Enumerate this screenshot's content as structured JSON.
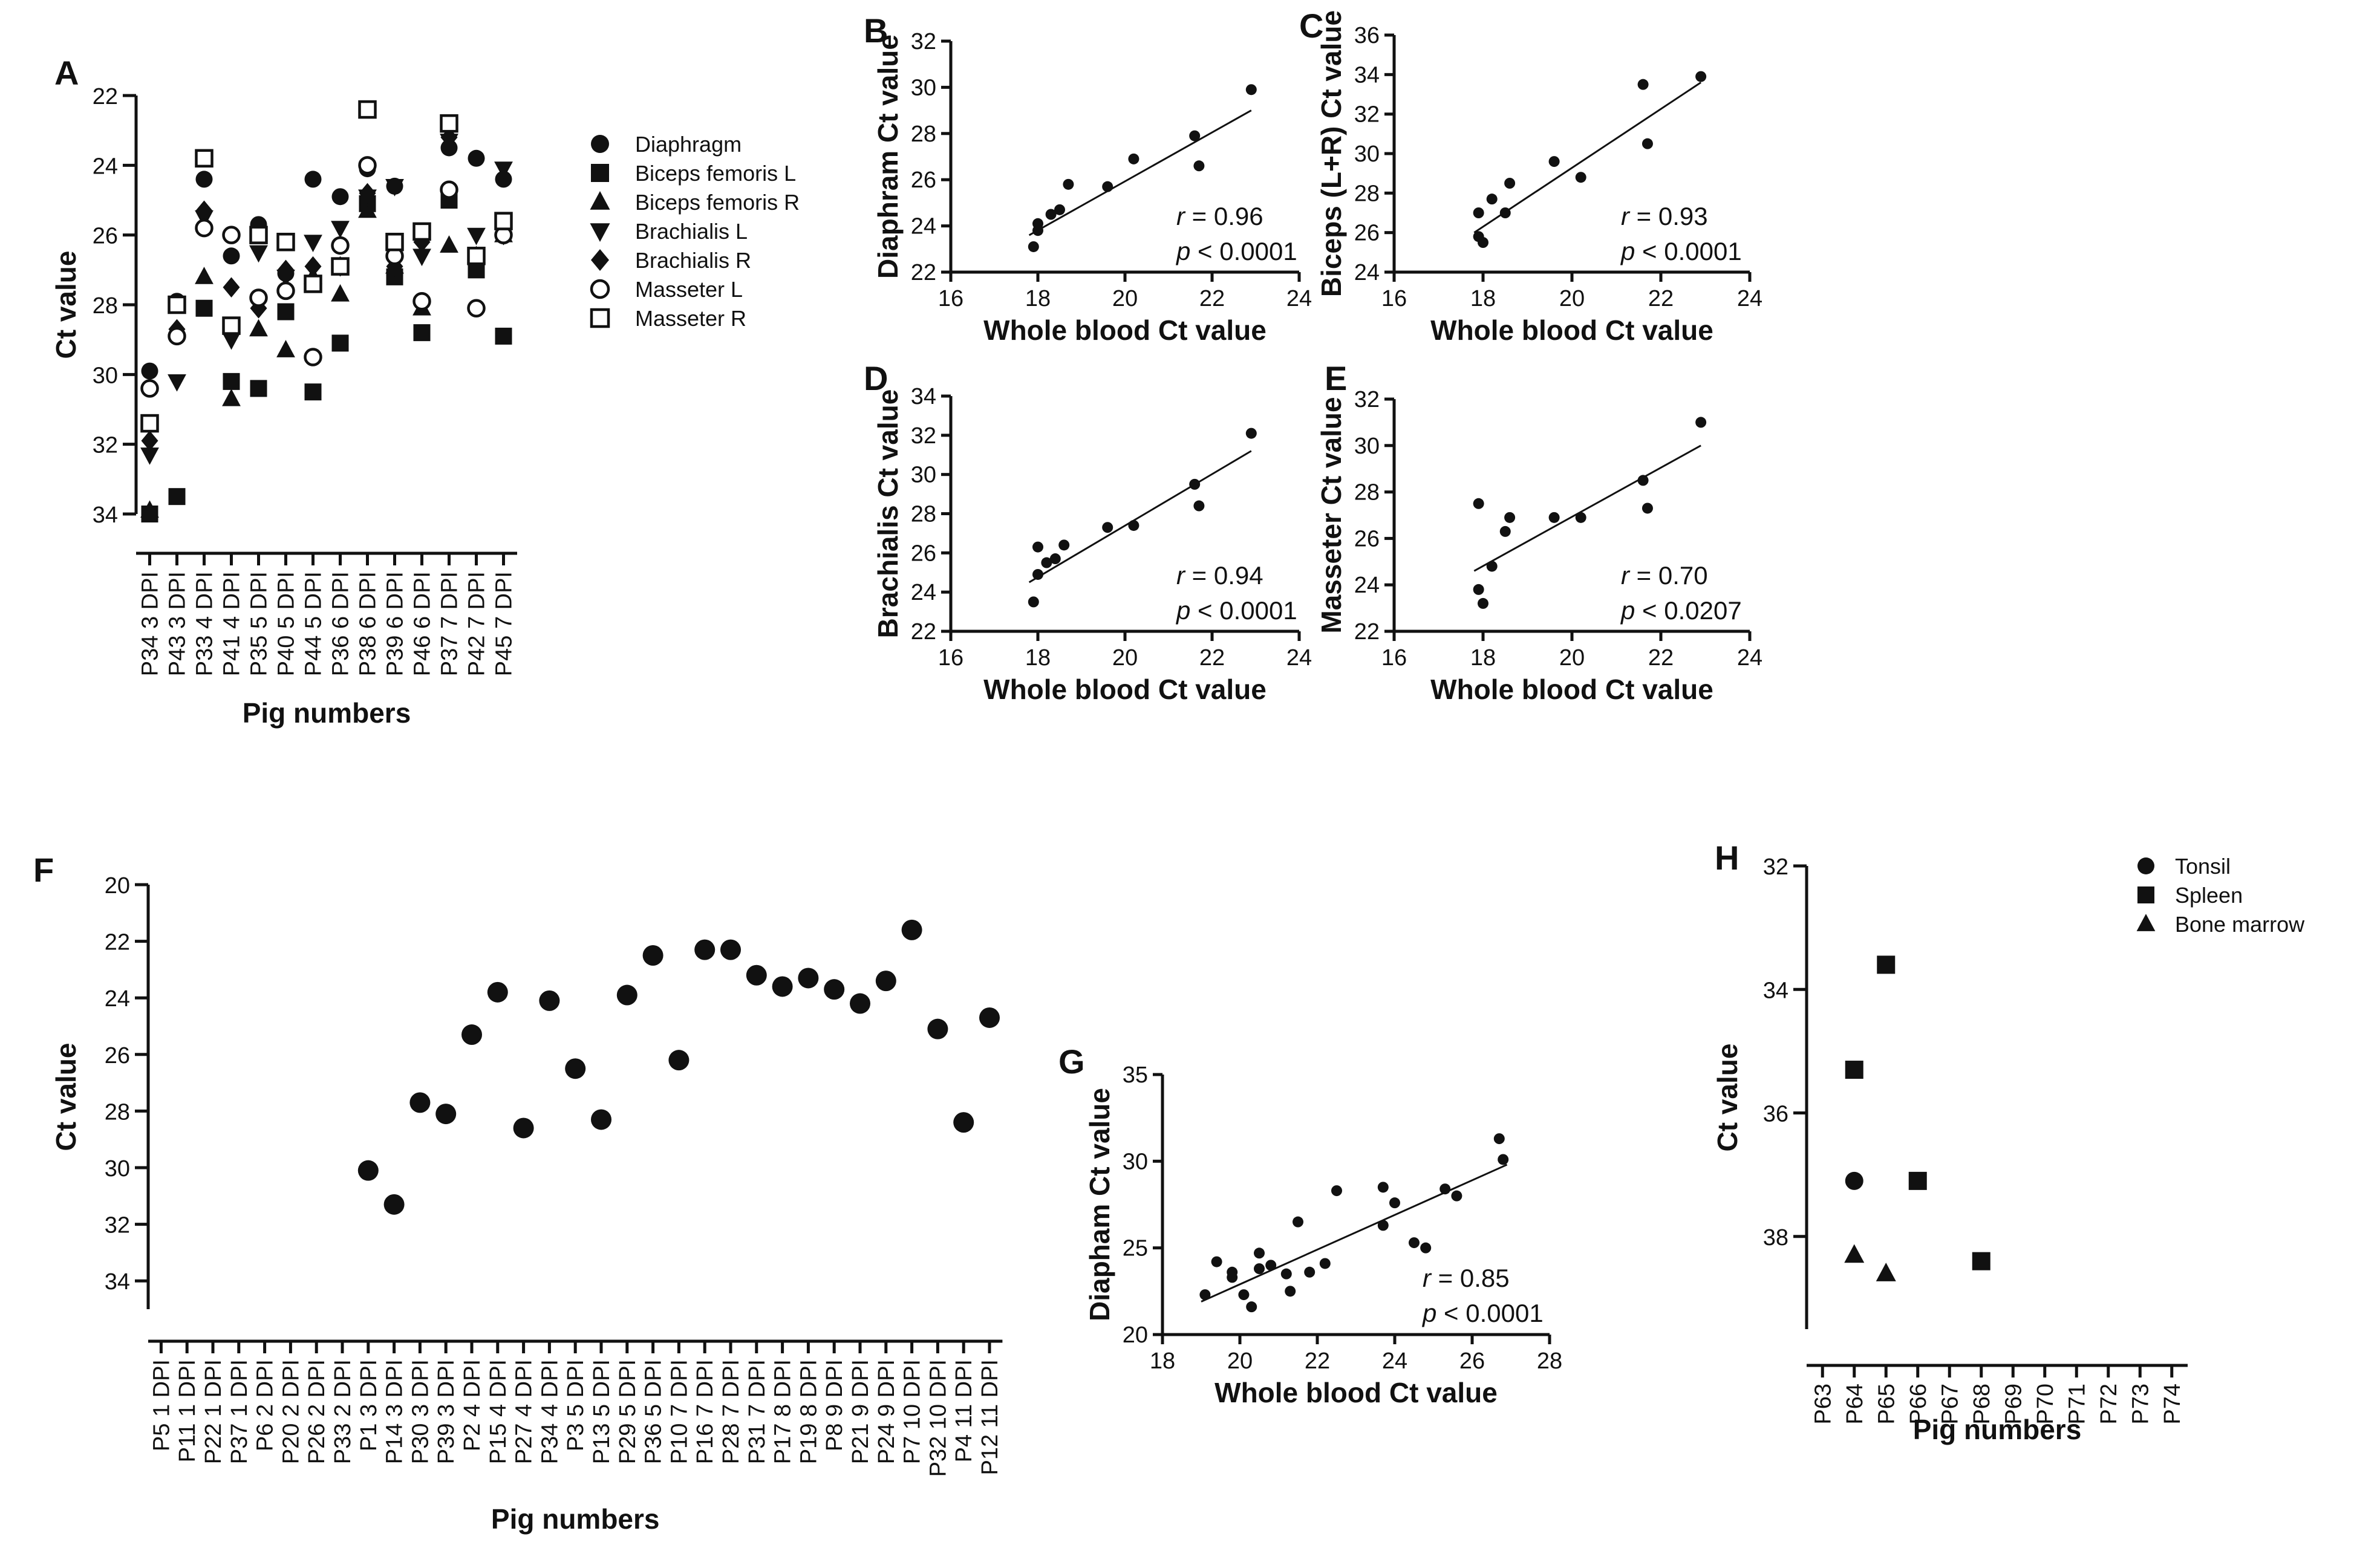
{
  "chart_data": [
    {
      "panel": "A",
      "type": "scatter",
      "ylabel": "Ct value",
      "xlabel": "Pig numbers",
      "ylim": [
        34,
        22
      ],
      "yticks": [
        22,
        24,
        26,
        28,
        30,
        32,
        34
      ],
      "y_inverted": true,
      "categories": [
        "P34 3 DPI",
        "P43 3 DPI",
        "P33 4 DPI",
        "P41 4 DPI",
        "P35 5 DPI",
        "P40 5 DPI",
        "P44 5 DPI",
        "P36 6 DPI",
        "P38 6 DPI",
        "P39 6 DPI",
        "P46 6 DPI",
        "P37 7 DPI",
        "P42 7 DPI",
        "P45 7 DPI"
      ],
      "series": [
        {
          "name": "Diaphragm",
          "marker": "circle",
          "values": [
            29.9,
            27.9,
            24.4,
            26.6,
            25.7,
            27.1,
            24.4,
            24.9,
            24.1,
            24.6,
            25.9,
            23.5,
            23.8,
            24.4
          ]
        },
        {
          "name": "Biceps femoris L",
          "marker": "square",
          "values": [
            34.0,
            33.5,
            28.1,
            30.2,
            30.4,
            28.2,
            30.5,
            29.1,
            25.1,
            27.2,
            28.8,
            25.0,
            27.0,
            28.9
          ]
        },
        {
          "name": "Biceps femoris R",
          "marker": "triangle",
          "values": [
            33.9,
            28.0,
            27.2,
            30.7,
            28.7,
            29.3,
            27.2,
            27.7,
            25.3,
            26.9,
            28.1,
            26.3,
            26.6,
            26.0
          ]
        },
        {
          "name": "Brachialis L",
          "marker": "triangle-down",
          "values": [
            32.3,
            30.2,
            25.5,
            29.0,
            26.5,
            27.2,
            26.2,
            25.8,
            24.9,
            24.6,
            26.6,
            23.3,
            26.0,
            24.1
          ]
        },
        {
          "name": "Brachialis R",
          "marker": "diamond",
          "values": [
            31.9,
            28.7,
            25.3,
            27.5,
            28.1,
            27.0,
            26.9,
            26.9,
            24.8,
            26.9,
            26.2,
            23.2,
            26.7,
            26.0
          ]
        },
        {
          "name": "Masseter L",
          "marker": "circle-open",
          "values": [
            30.4,
            28.9,
            25.8,
            26.0,
            27.8,
            27.6,
            29.5,
            26.3,
            24.0,
            26.6,
            27.9,
            24.7,
            28.1,
            26.0
          ]
        },
        {
          "name": "Masseter R",
          "marker": "square-open",
          "values": [
            31.4,
            28.0,
            23.8,
            28.6,
            26.0,
            26.2,
            27.4,
            26.9,
            22.4,
            26.2,
            25.9,
            22.8,
            26.6,
            25.6
          ]
        }
      ]
    },
    {
      "panel": "B",
      "type": "scatter",
      "xlabel": "Whole blood Ct value",
      "ylabel": "Diaphram Ct value",
      "xlim": [
        16,
        24
      ],
      "ylim": [
        22,
        32
      ],
      "xticks": [
        16,
        18,
        20,
        22,
        24
      ],
      "yticks": [
        22,
        24,
        26,
        28,
        30,
        32
      ],
      "x": [
        17.9,
        18.0,
        18.0,
        18.3,
        18.5,
        18.7,
        19.6,
        20.2,
        21.6,
        21.7,
        22.9
      ],
      "y": [
        23.1,
        23.8,
        24.1,
        24.5,
        24.7,
        25.8,
        25.7,
        26.9,
        27.9,
        26.6,
        29.9
      ],
      "fit": {
        "x": [
          17.8,
          22.9
        ],
        "y": [
          23.6,
          29.0
        ]
      },
      "r_label": "r",
      "r_value": "= 0.96",
      "p_label": "p",
      "p_value": "< 0.0001"
    },
    {
      "panel": "C",
      "type": "scatter",
      "xlabel": "Whole blood Ct value",
      "ylabel": "Biceps (L+R) Ct value",
      "xlim": [
        16,
        24
      ],
      "ylim": [
        24,
        36
      ],
      "xticks": [
        16,
        18,
        20,
        22,
        24
      ],
      "yticks": [
        24,
        26,
        28,
        30,
        32,
        34,
        36
      ],
      "x": [
        17.9,
        18.0,
        17.9,
        18.2,
        18.5,
        18.6,
        19.6,
        20.2,
        21.6,
        21.7,
        22.9
      ],
      "y": [
        25.8,
        25.5,
        27.0,
        27.7,
        27.0,
        28.5,
        29.6,
        28.8,
        33.5,
        30.5,
        33.9
      ],
      "fit": {
        "x": [
          17.8,
          22.9
        ],
        "y": [
          26.0,
          33.6
        ]
      },
      "r_label": "r",
      "r_value": "= 0.93",
      "p_label": "p",
      "p_value": "< 0.0001"
    },
    {
      "panel": "D",
      "type": "scatter",
      "xlabel": "Whole blood Ct value",
      "ylabel": "Brachialis Ct value",
      "xlim": [
        16,
        24
      ],
      "ylim": [
        22,
        34
      ],
      "xticks": [
        16,
        18,
        20,
        22,
        24
      ],
      "yticks": [
        22,
        24,
        26,
        28,
        30,
        32,
        34
      ],
      "x": [
        17.9,
        18.0,
        18.0,
        18.2,
        18.4,
        18.6,
        19.6,
        20.2,
        21.6,
        21.7,
        22.9
      ],
      "y": [
        23.5,
        24.9,
        26.3,
        25.5,
        25.7,
        26.4,
        27.3,
        27.4,
        29.5,
        28.4,
        32.1
      ],
      "fit": {
        "x": [
          17.8,
          22.9
        ],
        "y": [
          24.5,
          31.2
        ]
      },
      "r_label": "r",
      "r_value": "= 0.94",
      "p_label": "p",
      "p_value": "< 0.0001"
    },
    {
      "panel": "E",
      "type": "scatter",
      "xlabel": "Whole blood Ct value",
      "ylabel": "Masseter Ct value",
      "xlim": [
        16,
        24
      ],
      "ylim": [
        22,
        32
      ],
      "xticks": [
        16,
        18,
        20,
        22,
        24
      ],
      "yticks": [
        22,
        24,
        26,
        28,
        30,
        32
      ],
      "x": [
        17.9,
        18.0,
        17.9,
        18.2,
        18.5,
        18.6,
        19.6,
        20.2,
        21.6,
        21.7,
        22.9
      ],
      "y": [
        23.8,
        23.2,
        27.5,
        24.8,
        26.3,
        26.9,
        26.9,
        26.9,
        28.5,
        27.3,
        31.0
      ],
      "fit": {
        "x": [
          17.8,
          22.9
        ],
        "y": [
          24.6,
          30.0
        ]
      },
      "r_label": "r",
      "r_value": "= 0.70",
      "p_label": "p",
      "p_value": "< 0.0207"
    },
    {
      "panel": "F",
      "type": "scatter",
      "ylabel": "Ct value",
      "xlabel": "Pig numbers",
      "ylim": [
        35,
        20
      ],
      "yticks": [
        20,
        22,
        24,
        26,
        28,
        30,
        32,
        34
      ],
      "y_inverted": true,
      "categories": [
        "P5 1 DPI",
        "P11 1 DPI",
        "P22 1 DPI",
        "P37 1 DPI",
        "P6 2 DPI",
        "P20 2 DPI",
        "P26 2 DPI",
        "P33 2 DPI",
        "P1 3 DPI",
        "P14 3 DPI",
        "P30 3 DPI",
        "P39 3 DPI",
        "P2 4 DPI",
        "P15 4 DPI",
        "P27 4 DPI",
        "P34 4 DPI",
        "P3 5 DPI",
        "P13 5 DPI",
        "P29 5 DPI",
        "P36 5 DPI",
        "P10 7 DPI",
        "P16 7 DPI",
        "P28 7 DPI",
        "P31 7 DPI",
        "P17 8 DPI",
        "P19 8 DPI",
        "P8 9 DPI",
        "P21 9 DPI",
        "P24 9 DPI",
        "P7 10 DPI",
        "P32 10 DPI",
        "P4 11 DPI",
        "P12 11 DPI"
      ],
      "values": [
        null,
        null,
        null,
        null,
        null,
        null,
        null,
        null,
        30.1,
        31.3,
        27.7,
        28.1,
        25.3,
        23.8,
        28.6,
        24.1,
        26.5,
        28.3,
        23.9,
        22.5,
        26.2,
        22.3,
        22.3,
        23.2,
        23.6,
        23.3,
        23.7,
        24.2,
        23.4,
        21.6,
        25.1,
        28.4,
        24.7
      ]
    },
    {
      "panel": "G",
      "type": "scatter",
      "xlabel": "Whole blood Ct value",
      "ylabel": "Diapham Ct value",
      "xlim": [
        18,
        28
      ],
      "ylim": [
        20,
        35
      ],
      "xticks": [
        18,
        20,
        22,
        24,
        26,
        28
      ],
      "yticks": [
        20,
        25,
        30,
        35
      ],
      "x": [
        19.1,
        19.4,
        19.8,
        19.8,
        20.1,
        20.3,
        20.5,
        20.5,
        20.8,
        21.2,
        21.3,
        21.5,
        21.8,
        22.2,
        22.5,
        23.7,
        23.7,
        24.0,
        24.5,
        24.8,
        25.3,
        25.6,
        26.7,
        26.8
      ],
      "y": [
        22.3,
        24.2,
        23.6,
        23.3,
        22.3,
        21.6,
        24.7,
        23.8,
        24.0,
        23.5,
        22.5,
        26.5,
        23.6,
        24.1,
        28.3,
        28.5,
        26.3,
        27.6,
        25.3,
        25.0,
        28.4,
        28.0,
        31.3,
        30.1
      ],
      "fit": {
        "x": [
          19.0,
          26.9
        ],
        "y": [
          21.9,
          29.8
        ]
      },
      "r_label": "r",
      "r_value": "= 0.85",
      "p_label": "p",
      "p_value": "< 0.0001"
    },
    {
      "panel": "H",
      "type": "scatter",
      "ylabel": "Ct value",
      "xlabel": "Pig numbers",
      "ylim": [
        39.5,
        32
      ],
      "yticks": [
        32,
        34,
        36,
        38
      ],
      "y_inverted": true,
      "categories": [
        "P63",
        "P64",
        "P65",
        "P66",
        "P67",
        "P68",
        "P69",
        "P70",
        "P71",
        "P72",
        "P73",
        "P74"
      ],
      "series": [
        {
          "name": "Tonsil",
          "marker": "circle",
          "values": [
            null,
            37.1,
            null,
            null,
            null,
            null,
            null,
            null,
            null,
            null,
            null,
            null
          ]
        },
        {
          "name": "Spleen",
          "marker": "square",
          "values": [
            null,
            35.3,
            33.6,
            37.1,
            null,
            38.4,
            null,
            null,
            null,
            null,
            null,
            null
          ]
        },
        {
          "name": "Bone marrow",
          "marker": "triangle",
          "values": [
            null,
            38.3,
            38.6,
            null,
            null,
            null,
            null,
            null,
            null,
            null,
            null,
            null
          ]
        }
      ]
    }
  ]
}
